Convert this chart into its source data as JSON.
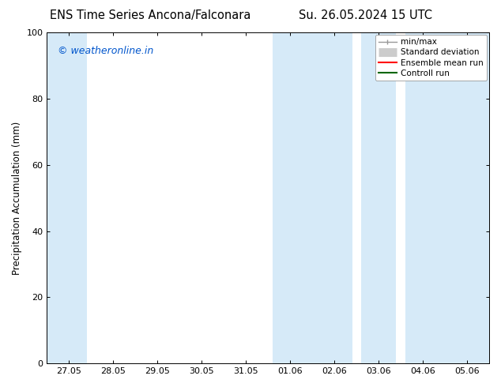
{
  "title_left": "ENS Time Series Ancona/Falconara",
  "title_right": "Su. 26.05.2024 15 UTC",
  "ylabel": "Precipitation Accumulation (mm)",
  "watermark": "© weatheronline.in",
  "ylim": [
    0,
    100
  ],
  "yticks": [
    0,
    20,
    40,
    60,
    80,
    100
  ],
  "xtick_labels": [
    "27.05",
    "28.05",
    "29.05",
    "30.05",
    "31.05",
    "01.06",
    "02.06",
    "03.06",
    "04.06",
    "05.06"
  ],
  "xtick_positions": [
    0,
    1,
    2,
    3,
    4,
    5,
    6,
    7,
    8,
    9
  ],
  "xlim": [
    -0.5,
    9.5
  ],
  "shaded_regions": [
    {
      "xmin": -0.5,
      "xmax": 0.4,
      "color": "#d6eaf8",
      "alpha": 1.0
    },
    {
      "xmin": 4.6,
      "xmax": 6.4,
      "color": "#d6eaf8",
      "alpha": 1.0
    },
    {
      "xmin": 6.6,
      "xmax": 7.4,
      "color": "#d6eaf8",
      "alpha": 1.0
    },
    {
      "xmin": 7.6,
      "xmax": 9.5,
      "color": "#d6eaf8",
      "alpha": 1.0
    }
  ],
  "legend_entries": [
    {
      "label": "min/max",
      "color": "#999999",
      "type": "errbar"
    },
    {
      "label": "Standard deviation",
      "color": "#cccccc",
      "type": "band"
    },
    {
      "label": "Ensemble mean run",
      "color": "red",
      "type": "line"
    },
    {
      "label": "Controll run",
      "color": "green",
      "type": "line"
    }
  ],
  "background_color": "#ffffff",
  "plot_bg_color": "#ffffff",
  "title_fontsize": 10.5,
  "ylabel_fontsize": 8.5,
  "tick_fontsize": 8,
  "watermark_color": "#0055cc",
  "watermark_fontsize": 9,
  "legend_fontsize": 7.5
}
